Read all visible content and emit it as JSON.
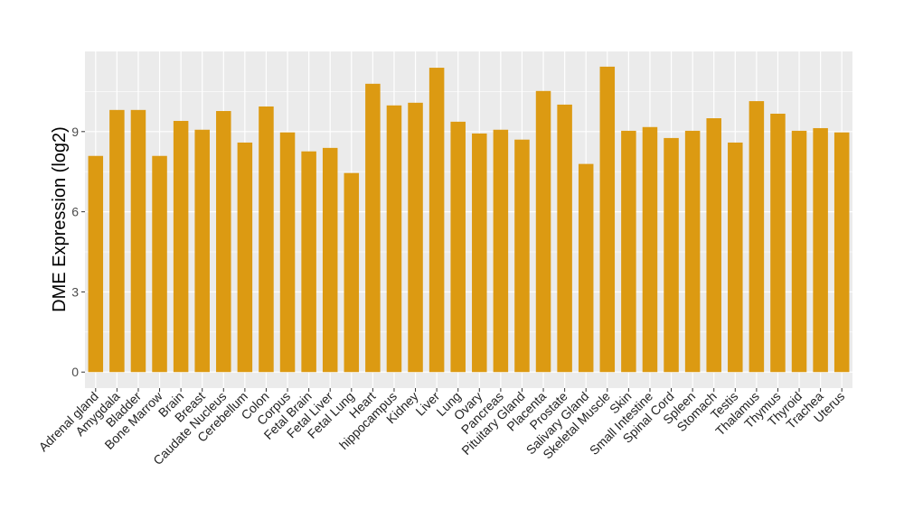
{
  "chart_data": {
    "type": "bar",
    "title": "",
    "xlabel": "",
    "ylabel": "DME Expression (log2)",
    "ylim": [
      -0.6,
      12.0
    ],
    "yticks": [
      0,
      3,
      6,
      9
    ],
    "grid": true,
    "bar_color": "#DC9A12",
    "panel_color": "#EBEBEB",
    "categories": [
      "Adrenal gland",
      "Amygdala",
      "Bladder",
      "Bone Marrow",
      "Brain",
      "Breast",
      "Caudate Nucleus",
      "Cerebellum",
      "Colon",
      "Corpus",
      "Fetal Brain",
      "Fetal Liver",
      "Fetal Lung",
      "Heart",
      "hippocampus",
      "Kidney",
      "Liver",
      "Lung",
      "Ovary",
      "Pancreas",
      "Pituitary Gland",
      "Placenta",
      "Prostate",
      "Salivary Gland",
      "Skeletal Muscle",
      "Skin",
      "Small Intestine",
      "Spinal Cord",
      "Spleen",
      "Stomach",
      "Testis",
      "Thalamus",
      "Thymus",
      "Thyroid",
      "Trachea",
      "Uterus"
    ],
    "values": [
      8.09,
      9.81,
      9.81,
      8.09,
      9.4,
      9.07,
      9.77,
      8.59,
      9.94,
      8.97,
      8.26,
      8.39,
      7.45,
      10.79,
      9.98,
      10.08,
      11.39,
      9.37,
      8.93,
      9.07,
      8.7,
      10.52,
      10.01,
      7.79,
      11.43,
      9.03,
      9.17,
      8.76,
      9.03,
      9.5,
      8.59,
      10.14,
      9.67,
      9.03,
      9.13,
      8.97
    ]
  }
}
